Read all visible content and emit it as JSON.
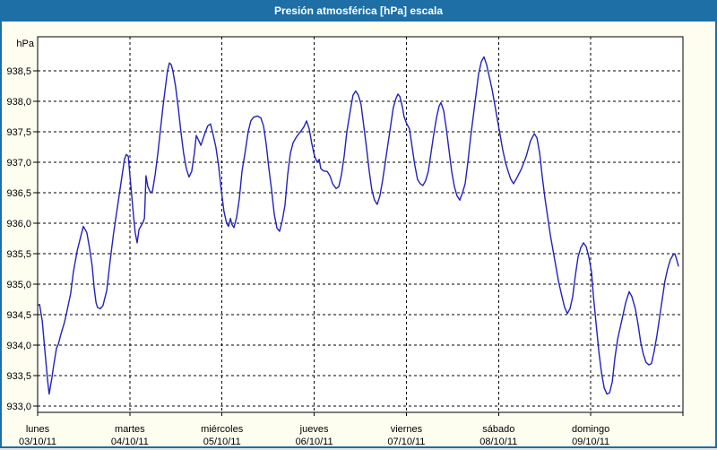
{
  "window": {
    "title": "Presión atmosférica [hPa] escala"
  },
  "colors": {
    "titlebar_bg": "#1d6fa5",
    "titlebar_text": "#ffffff",
    "frame": "#1d6fa5",
    "page_bg": "#fdfef0",
    "plot_bg": "#ffffff",
    "axis": "#000000",
    "grid": "#000000",
    "label_text": "#000000",
    "line": "#2222bb"
  },
  "chart_data": {
    "type": "line",
    "title": "Presión atmosférica [hPa] escala",
    "ylabel": "hPa",
    "xlabel": "",
    "ylim": [
      932.9,
      939.06
    ],
    "x_total_hours": 168,
    "grid": "dashed",
    "legend_position": "none",
    "yticks": [
      {
        "value": 933.0,
        "label": "933,0"
      },
      {
        "value": 933.5,
        "label": "933,5"
      },
      {
        "value": 934.0,
        "label": "934,0"
      },
      {
        "value": 934.5,
        "label": "934,5"
      },
      {
        "value": 935.0,
        "label": "935,0"
      },
      {
        "value": 935.5,
        "label": "935,5"
      },
      {
        "value": 936.0,
        "label": "936,0"
      },
      {
        "value": 936.5,
        "label": "936,5"
      },
      {
        "value": 937.0,
        "label": "937,0"
      },
      {
        "value": 937.5,
        "label": "937,5"
      },
      {
        "value": 938.0,
        "label": "938,0"
      },
      {
        "value": 938.5,
        "label": "938,5"
      }
    ],
    "x_days": [
      {
        "name": "lunes",
        "date": "03/10/11",
        "start_hour": 0
      },
      {
        "name": "martes",
        "date": "04/10/11",
        "start_hour": 24
      },
      {
        "name": "miércoles",
        "date": "05/10/11",
        "start_hour": 48
      },
      {
        "name": "jueves",
        "date": "06/10/11",
        "start_hour": 72
      },
      {
        "name": "viernes",
        "date": "07/10/11",
        "start_hour": 96
      },
      {
        "name": "sábado",
        "date": "08/10/11",
        "start_hour": 120
      },
      {
        "name": "domingo",
        "date": "09/10/11",
        "start_hour": 144
      }
    ],
    "series": [
      {
        "name": "Presión atmosférica [hPa]",
        "color": "#2222bb",
        "points": [
          [
            0,
            934.65
          ],
          [
            0.5,
            934.67
          ],
          [
            1.2,
            934.4
          ],
          [
            1.9,
            933.9
          ],
          [
            2.6,
            933.42
          ],
          [
            3,
            933.2
          ],
          [
            3.7,
            933.46
          ],
          [
            4.2,
            933.68
          ],
          [
            4.9,
            933.95
          ],
          [
            5.4,
            934.02
          ],
          [
            6.1,
            934.19
          ],
          [
            7,
            934.38
          ],
          [
            7.7,
            934.58
          ],
          [
            8.6,
            934.85
          ],
          [
            9.3,
            935.2
          ],
          [
            10.3,
            935.55
          ],
          [
            11.2,
            935.78
          ],
          [
            11.9,
            935.95
          ],
          [
            12.8,
            935.85
          ],
          [
            13.5,
            935.6
          ],
          [
            14.2,
            935.3
          ],
          [
            14.7,
            934.95
          ],
          [
            15.2,
            934.7
          ],
          [
            15.6,
            934.62
          ],
          [
            16.3,
            934.6
          ],
          [
            17,
            934.65
          ],
          [
            18,
            934.9
          ],
          [
            18.9,
            935.4
          ],
          [
            19.8,
            935.85
          ],
          [
            20.5,
            936.15
          ],
          [
            21.2,
            936.45
          ],
          [
            21.9,
            936.75
          ],
          [
            22.6,
            937.05
          ],
          [
            23.1,
            937.13
          ],
          [
            23.6,
            937.1
          ],
          [
            24,
            936.8
          ],
          [
            24.5,
            936.45
          ],
          [
            25,
            936.1
          ],
          [
            25.4,
            935.85
          ],
          [
            25.9,
            935.68
          ],
          [
            26.4,
            935.9
          ],
          [
            27.3,
            936
          ],
          [
            27.8,
            936.08
          ],
          [
            28,
            936.4
          ],
          [
            28.2,
            936.78
          ],
          [
            28.7,
            936.6
          ],
          [
            29.4,
            936.5
          ],
          [
            29.9,
            936.53
          ],
          [
            30.6,
            936.8
          ],
          [
            31.3,
            937.15
          ],
          [
            32,
            937.55
          ],
          [
            32.7,
            937.95
          ],
          [
            33.4,
            938.3
          ],
          [
            33.8,
            938.5
          ],
          [
            34.3,
            938.63
          ],
          [
            34.8,
            938.6
          ],
          [
            35.2,
            938.5
          ],
          [
            35.9,
            938.25
          ],
          [
            36.6,
            937.9
          ],
          [
            37.3,
            937.5
          ],
          [
            38,
            937.15
          ],
          [
            38.7,
            936.9
          ],
          [
            39.4,
            936.76
          ],
          [
            40.1,
            936.85
          ],
          [
            40.8,
            937.15
          ],
          [
            41.3,
            937.44
          ],
          [
            42,
            937.35
          ],
          [
            42.5,
            937.28
          ],
          [
            43.4,
            937.45
          ],
          [
            44.3,
            937.6
          ],
          [
            45,
            937.63
          ],
          [
            45.7,
            937.45
          ],
          [
            46.4,
            937.25
          ],
          [
            47.1,
            936.95
          ],
          [
            47.8,
            936.55
          ],
          [
            48.5,
            936.2
          ],
          [
            49.2,
            936
          ],
          [
            49.7,
            935.95
          ],
          [
            50.2,
            936.08
          ],
          [
            50.6,
            935.98
          ],
          [
            51.1,
            935.93
          ],
          [
            51.8,
            936.1
          ],
          [
            52.5,
            936.4
          ],
          [
            53.2,
            936.85
          ],
          [
            54.1,
            937.2
          ],
          [
            54.8,
            937.5
          ],
          [
            55.5,
            937.68
          ],
          [
            56.2,
            937.74
          ],
          [
            57.2,
            937.76
          ],
          [
            58.1,
            937.73
          ],
          [
            58.8,
            937.6
          ],
          [
            59.5,
            937.3
          ],
          [
            60.2,
            936.9
          ],
          [
            60.9,
            936.55
          ],
          [
            61.6,
            936.15
          ],
          [
            62.3,
            935.92
          ],
          [
            63,
            935.87
          ],
          [
            63.7,
            936.05
          ],
          [
            64.4,
            936.3
          ],
          [
            65.1,
            936.8
          ],
          [
            65.8,
            937.15
          ],
          [
            66.5,
            937.32
          ],
          [
            67.4,
            937.42
          ],
          [
            68.4,
            937.5
          ],
          [
            69.3,
            937.58
          ],
          [
            70,
            937.68
          ],
          [
            70.7,
            937.55
          ],
          [
            71.4,
            937.3
          ],
          [
            72.1,
            937.1
          ],
          [
            72.8,
            937
          ],
          [
            73.3,
            937.05
          ],
          [
            73.7,
            936.9
          ],
          [
            74.4,
            936.86
          ],
          [
            75.4,
            936.85
          ],
          [
            76.1,
            936.78
          ],
          [
            76.8,
            936.65
          ],
          [
            77.7,
            936.57
          ],
          [
            78.4,
            936.6
          ],
          [
            79.1,
            936.8
          ],
          [
            79.8,
            937.1
          ],
          [
            80.5,
            937.5
          ],
          [
            81.4,
            937.85
          ],
          [
            82.1,
            938.1
          ],
          [
            82.8,
            938.17
          ],
          [
            83.5,
            938.1
          ],
          [
            84.2,
            937.95
          ],
          [
            84.9,
            937.6
          ],
          [
            85.6,
            937.25
          ],
          [
            86.3,
            936.87
          ],
          [
            87,
            936.55
          ],
          [
            87.7,
            936.38
          ],
          [
            88.4,
            936.31
          ],
          [
            89.1,
            936.45
          ],
          [
            89.8,
            936.7
          ],
          [
            90.5,
            937
          ],
          [
            91.2,
            937.3
          ],
          [
            91.9,
            937.6
          ],
          [
            92.6,
            937.9
          ],
          [
            93.3,
            938.05
          ],
          [
            93.8,
            938.12
          ],
          [
            94.3,
            938.08
          ],
          [
            95,
            937.9
          ],
          [
            95.4,
            937.75
          ],
          [
            96.1,
            937.63
          ],
          [
            96.8,
            937.55
          ],
          [
            97.5,
            937.25
          ],
          [
            98.2,
            936.95
          ],
          [
            98.9,
            936.72
          ],
          [
            99.6,
            936.65
          ],
          [
            100.3,
            936.62
          ],
          [
            101,
            936.7
          ],
          [
            101.7,
            936.85
          ],
          [
            102.4,
            937.15
          ],
          [
            103.1,
            937.45
          ],
          [
            103.8,
            937.72
          ],
          [
            104.5,
            937.92
          ],
          [
            105,
            937.98
          ],
          [
            105.7,
            937.85
          ],
          [
            106.4,
            937.55
          ],
          [
            107.1,
            937.2
          ],
          [
            107.8,
            936.85
          ],
          [
            108.5,
            936.6
          ],
          [
            109.2,
            936.45
          ],
          [
            109.9,
            936.38
          ],
          [
            110.6,
            936.5
          ],
          [
            111.3,
            936.65
          ],
          [
            112,
            937
          ],
          [
            112.7,
            937.4
          ],
          [
            113.4,
            937.75
          ],
          [
            114.1,
            938.1
          ],
          [
            114.8,
            938.45
          ],
          [
            115.5,
            938.65
          ],
          [
            116.2,
            938.73
          ],
          [
            116.9,
            938.6
          ],
          [
            117.6,
            938.4
          ],
          [
            118.3,
            938.2
          ],
          [
            119,
            937.95
          ],
          [
            119.7,
            937.7
          ],
          [
            120.4,
            937.45
          ],
          [
            121.1,
            937.2
          ],
          [
            121.8,
            937
          ],
          [
            122.5,
            936.85
          ],
          [
            123.2,
            936.72
          ],
          [
            123.9,
            936.65
          ],
          [
            124.8,
            936.75
          ],
          [
            126,
            936.9
          ],
          [
            127.2,
            937.1
          ],
          [
            128.3,
            937.35
          ],
          [
            129.3,
            937.47
          ],
          [
            130,
            937.4
          ],
          [
            130.7,
            937.15
          ],
          [
            131.4,
            936.75
          ],
          [
            132.1,
            936.4
          ],
          [
            132.8,
            936.1
          ],
          [
            133.5,
            935.8
          ],
          [
            134.2,
            935.55
          ],
          [
            134.9,
            935.3
          ],
          [
            135.6,
            935.05
          ],
          [
            136.5,
            934.8
          ],
          [
            137.2,
            934.62
          ],
          [
            137.9,
            934.52
          ],
          [
            138.6,
            934.6
          ],
          [
            139.3,
            934.8
          ],
          [
            140,
            935.15
          ],
          [
            140.7,
            935.45
          ],
          [
            141.4,
            935.6
          ],
          [
            142.1,
            935.68
          ],
          [
            142.8,
            935.62
          ],
          [
            143.5,
            935.45
          ],
          [
            144.2,
            935.2
          ],
          [
            144.7,
            934.8
          ],
          [
            145.4,
            934.35
          ],
          [
            146.1,
            933.9
          ],
          [
            146.8,
            933.55
          ],
          [
            147.5,
            933.3
          ],
          [
            148.2,
            933.2
          ],
          [
            148.9,
            933.22
          ],
          [
            149.6,
            933.4
          ],
          [
            150.3,
            933.8
          ],
          [
            151,
            934.1
          ],
          [
            151.7,
            934.3
          ],
          [
            152.4,
            934.5
          ],
          [
            153.1,
            934.7
          ],
          [
            154,
            934.88
          ],
          [
            154.7,
            934.8
          ],
          [
            155.6,
            934.6
          ],
          [
            156.3,
            934.35
          ],
          [
            157,
            934.05
          ],
          [
            157.7,
            933.85
          ],
          [
            158.4,
            933.72
          ],
          [
            159.1,
            933.68
          ],
          [
            159.8,
            933.7
          ],
          [
            160.5,
            933.9
          ],
          [
            161.2,
            934.15
          ],
          [
            161.9,
            934.45
          ],
          [
            162.6,
            934.75
          ],
          [
            163.3,
            935.05
          ],
          [
            164,
            935.25
          ],
          [
            164.7,
            935.4
          ],
          [
            165.4,
            935.48
          ],
          [
            165.9,
            935.5
          ],
          [
            166.4,
            935.4
          ],
          [
            166.8,
            935.3
          ]
        ]
      }
    ]
  }
}
